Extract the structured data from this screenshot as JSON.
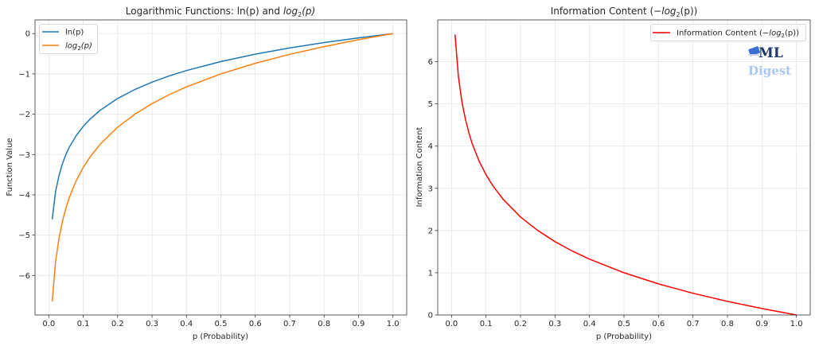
{
  "chart_data": [
    {
      "type": "line",
      "title": "Logarithmic Functions: ln(p) and log₂(p)",
      "title_parts": {
        "pre": "Logarithmic Functions: ln(p) and ",
        "fn": "log",
        "sub": "2",
        "post": "(p)"
      },
      "xlabel": "p (Probability)",
      "ylabel": "Function Value",
      "xlim": [
        -0.04,
        1.04
      ],
      "ylim": [
        -6.98,
        0.34
      ],
      "xticks": [
        "0.0",
        "0.1",
        "0.2",
        "0.3",
        "0.4",
        "0.5",
        "0.6",
        "0.7",
        "0.8",
        "0.9",
        "1.0"
      ],
      "yticks": [
        "0",
        "−1",
        "−2",
        "−3",
        "−4",
        "−5",
        "−6"
      ],
      "grid": true,
      "legend_placement": "top-left",
      "x": [
        0.01,
        0.02,
        0.03,
        0.04,
        0.05,
        0.06,
        0.08,
        0.1,
        0.12,
        0.15,
        0.2,
        0.25,
        0.3,
        0.35,
        0.4,
        0.5,
        0.6,
        0.7,
        0.8,
        0.9,
        1.0
      ],
      "series": [
        {
          "name": "ln(p)",
          "color": "#1f77b4",
          "values": [
            -4.605,
            -3.912,
            -3.507,
            -3.219,
            -2.996,
            -2.813,
            -2.526,
            -2.303,
            -2.12,
            -1.897,
            -1.609,
            -1.386,
            -1.204,
            -1.05,
            -0.916,
            -0.693,
            -0.511,
            -0.357,
            -0.223,
            -0.105,
            0
          ]
        },
        {
          "name": "log₂(p)",
          "name_parts": {
            "fn": "log",
            "sub": "2",
            "post": "(p)"
          },
          "color": "#ff7f0e",
          "values": [
            -6.644,
            -5.644,
            -5.059,
            -4.644,
            -4.322,
            -4.059,
            -3.644,
            -3.322,
            -3.059,
            -2.737,
            -2.322,
            -2.0,
            -1.737,
            -1.515,
            -1.322,
            -1.0,
            -0.737,
            -0.515,
            -0.322,
            -0.152,
            0
          ]
        }
      ]
    },
    {
      "type": "line",
      "title": "Information Content (−log₂(p))",
      "title_parts": {
        "pre": "Information Content (−",
        "fn": "log",
        "sub": "2",
        "post": "(p))"
      },
      "xlabel": "p (Probability)",
      "ylabel": "Information Content",
      "xlim": [
        -0.04,
        1.04
      ],
      "ylim": [
        0,
        6.99
      ],
      "xticks": [
        "0.0",
        "0.1",
        "0.2",
        "0.3",
        "0.4",
        "0.5",
        "0.6",
        "0.7",
        "0.8",
        "0.9",
        "1.0"
      ],
      "yticks": [
        "0",
        "1",
        "2",
        "3",
        "4",
        "5",
        "6"
      ],
      "grid": true,
      "legend_placement": "top-right",
      "x": [
        0.01,
        0.02,
        0.03,
        0.04,
        0.05,
        0.06,
        0.08,
        0.1,
        0.12,
        0.15,
        0.2,
        0.25,
        0.3,
        0.35,
        0.4,
        0.5,
        0.6,
        0.7,
        0.8,
        0.9,
        1.0
      ],
      "series": [
        {
          "name": "Information Content (−log₂(p))",
          "name_parts": {
            "pre": "Information Content (−",
            "fn": "log",
            "sub": "2",
            "post": "(p))"
          },
          "color": "#ff0000",
          "values": [
            6.644,
            5.644,
            5.059,
            4.644,
            4.322,
            4.059,
            3.644,
            3.322,
            3.059,
            2.737,
            2.322,
            2.0,
            1.737,
            1.515,
            1.322,
            1.0,
            0.737,
            0.515,
            0.322,
            0.152,
            0
          ]
        }
      ]
    }
  ],
  "watermark": {
    "line1": "ML",
    "line2": "Digest"
  }
}
